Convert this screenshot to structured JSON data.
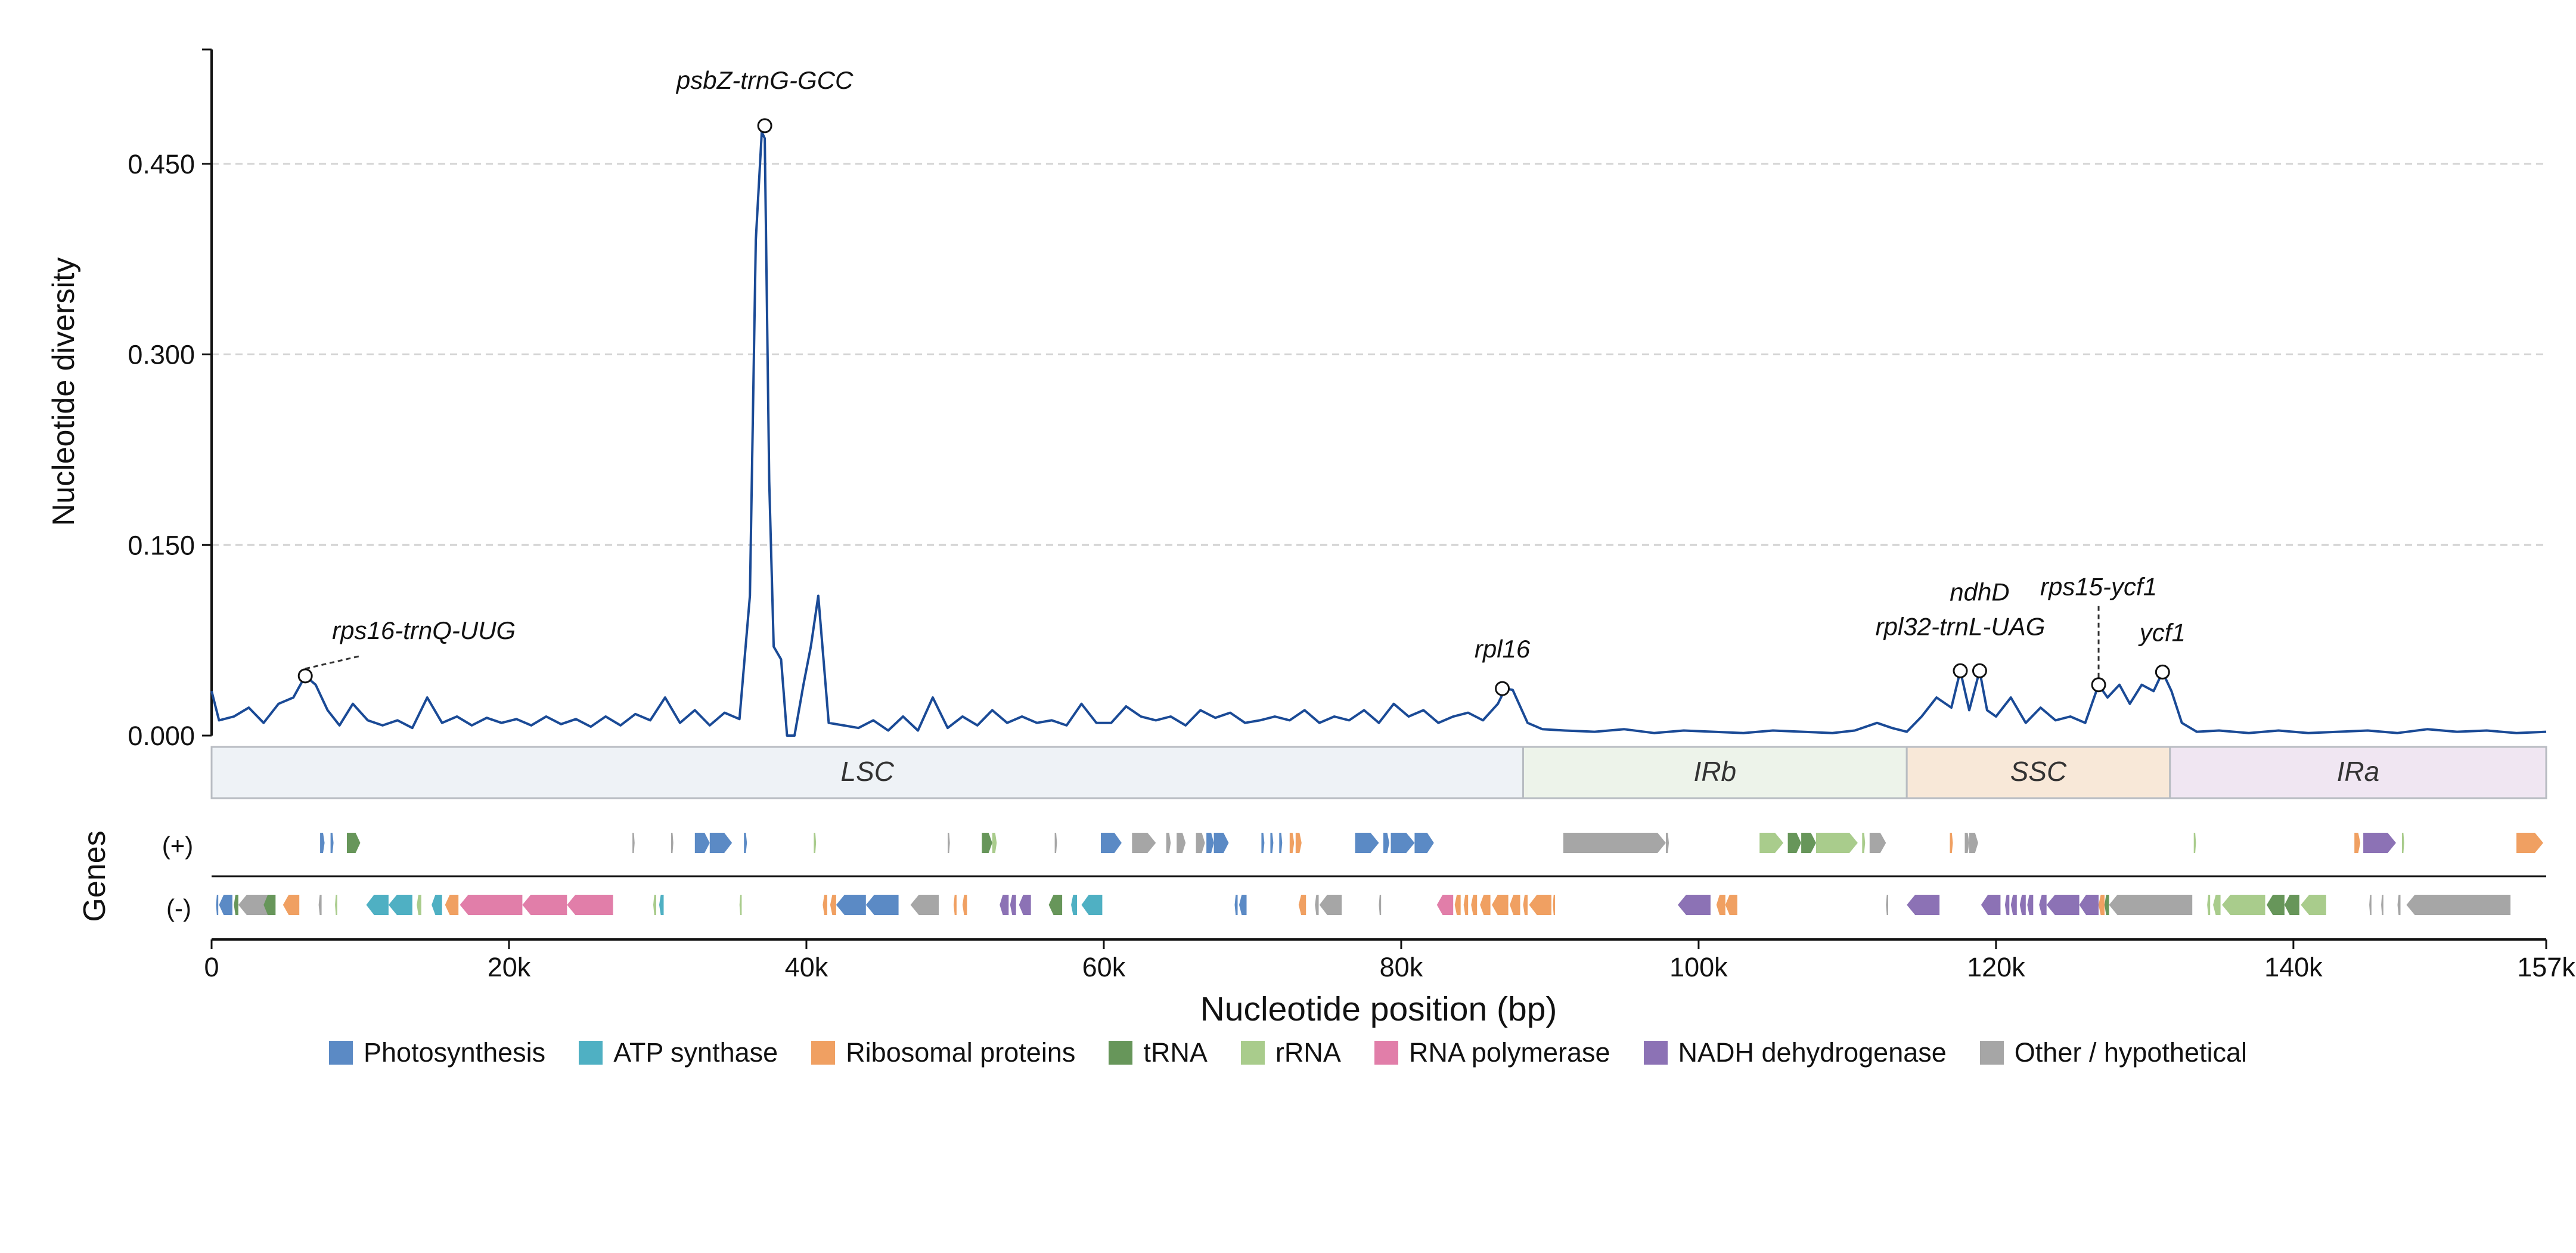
{
  "chart_data": {
    "type": "line",
    "xlabel": "Nucleotide position (bp)",
    "ylabel": "Nucleotide diversity",
    "genes_label": "Genes",
    "strand_plus_label": "(+)",
    "strand_minus_label": "(-)",
    "xlim": [
      0,
      157000
    ],
    "ylim": [
      0,
      0.54
    ],
    "x_ticks": [
      0,
      20000,
      40000,
      60000,
      80000,
      100000,
      120000,
      140000,
      157000
    ],
    "x_tick_labels": [
      "0",
      "20k",
      "40k",
      "60k",
      "80k",
      "100k",
      "120k",
      "140k",
      "157k"
    ],
    "y_ticks": [
      0,
      0.15,
      0.3,
      0.45
    ],
    "y_tick_labels": [
      "0.000",
      "0.150",
      "0.300",
      "0.450"
    ],
    "grid": "horizontal dashed",
    "line_color": "#1a4a96",
    "series": [
      {
        "x": [
          0,
          500,
          1500,
          2500,
          3500,
          4500,
          5500,
          6300,
          7000,
          7800,
          8600,
          9500,
          10500,
          11500,
          12500,
          13500,
          14500,
          15500,
          16500,
          17500,
          18500,
          19500,
          20500,
          21500,
          22500,
          23500,
          24500,
          25500,
          26500,
          27500,
          28500,
          29500,
          30500,
          31500,
          32500,
          33500,
          34500,
          35500,
          36200,
          36600,
          37000,
          37200,
          37500,
          37800,
          38300,
          38700,
          39200,
          39800,
          40300,
          40800,
          41500,
          42500,
          43500,
          44500,
          45500,
          46500,
          47500,
          48500,
          49500,
          50500,
          51500,
          52500,
          53500,
          54500,
          55500,
          56500,
          57500,
          58500,
          59500,
          60500,
          61500,
          62500,
          63500,
          64500,
          65500,
          66500,
          67500,
          68500,
          69500,
          70500,
          71500,
          72500,
          73500,
          74500,
          75500,
          76500,
          77500,
          78500,
          79500,
          80500,
          81500,
          82500,
          83500,
          84500,
          85500,
          86500,
          87000,
          87500,
          88500,
          89500,
          91000,
          93000,
          95000,
          97000,
          99000,
          101000,
          103000,
          105000,
          107000,
          109000,
          110500,
          112000,
          113000,
          114000,
          115000,
          116000,
          117000,
          117600,
          118200,
          118900,
          119400,
          120000,
          121000,
          122000,
          123000,
          124000,
          125000,
          126000,
          126900,
          127500,
          128300,
          129000,
          129800,
          130600,
          131200,
          131800,
          132500,
          133500,
          135000,
          137000,
          139000,
          141000,
          143000,
          145000,
          147000,
          149000,
          151000,
          153000,
          155000,
          157000
        ],
        "y": [
          0.035,
          0.012,
          0.015,
          0.022,
          0.01,
          0.025,
          0.03,
          0.047,
          0.04,
          0.02,
          0.008,
          0.025,
          0.012,
          0.008,
          0.012,
          0.006,
          0.03,
          0.01,
          0.015,
          0.008,
          0.014,
          0.01,
          0.013,
          0.008,
          0.015,
          0.009,
          0.013,
          0.007,
          0.015,
          0.008,
          0.017,
          0.012,
          0.03,
          0.01,
          0.02,
          0.008,
          0.018,
          0.013,
          0.11,
          0.39,
          0.475,
          0.47,
          0.2,
          0.07,
          0.06,
          0.0,
          0.0,
          0.04,
          0.07,
          0.11,
          0.01,
          0.008,
          0.006,
          0.012,
          0.004,
          0.015,
          0.004,
          0.03,
          0.006,
          0.015,
          0.008,
          0.02,
          0.01,
          0.015,
          0.01,
          0.012,
          0.008,
          0.025,
          0.01,
          0.01,
          0.023,
          0.015,
          0.012,
          0.015,
          0.008,
          0.02,
          0.014,
          0.018,
          0.01,
          0.012,
          0.015,
          0.012,
          0.02,
          0.01,
          0.015,
          0.012,
          0.02,
          0.01,
          0.025,
          0.015,
          0.02,
          0.01,
          0.015,
          0.018,
          0.012,
          0.025,
          0.037,
          0.036,
          0.01,
          0.005,
          0.004,
          0.003,
          0.005,
          0.002,
          0.004,
          0.003,
          0.002,
          0.004,
          0.003,
          0.002,
          0.004,
          0.01,
          0.006,
          0.003,
          0.015,
          0.03,
          0.022,
          0.051,
          0.02,
          0.051,
          0.02,
          0.015,
          0.03,
          0.01,
          0.022,
          0.012,
          0.015,
          0.01,
          0.04,
          0.03,
          0.04,
          0.025,
          0.04,
          0.035,
          0.05,
          0.035,
          0.01,
          0.003,
          0.004,
          0.002,
          0.004,
          0.002,
          0.003,
          0.004,
          0.002,
          0.005,
          0.003,
          0.004,
          0.002,
          0.003
        ]
      }
    ],
    "annotations": [
      {
        "label": "psbZ-trnG-GCC",
        "x": 37200,
        "y": 0.48
      },
      {
        "label": "rps16-trnQ-UUG",
        "x": 6300,
        "y": 0.047
      },
      {
        "label": "rpl16",
        "x": 86800,
        "y": 0.037
      },
      {
        "label": "rpl32-trnL-UAG",
        "x": 117600,
        "y": 0.051
      },
      {
        "label": "ndhD",
        "x": 118900,
        "y": 0.051
      },
      {
        "label": "rps15-ycf1",
        "x": 126900,
        "y": 0.04
      },
      {
        "label": "ycf1",
        "x": 131200,
        "y": 0.05
      }
    ],
    "regions": [
      {
        "label": "LSC",
        "start": 0,
        "end": 88200,
        "color": "#eef2f6"
      },
      {
        "label": "IRb",
        "start": 88200,
        "end": 114000,
        "color": "#edf3ea"
      },
      {
        "label": "SSC",
        "start": 114000,
        "end": 131700,
        "color": "#f8e8d8"
      },
      {
        "label": "IRa",
        "start": 131700,
        "end": 157000,
        "color": "#f0e6f2"
      }
    ],
    "gene_categories": [
      {
        "name": "Photosynthesis",
        "color": "#5b8ac5"
      },
      {
        "name": "ATP synthase",
        "color": "#4fb0c3"
      },
      {
        "name": "Ribosomal proteins",
        "color": "#f0a062"
      },
      {
        "name": "tRNA",
        "color": "#67965a"
      },
      {
        "name": "rRNA",
        "color": "#a9cc8c"
      },
      {
        "name": "RNA polymerase",
        "color": "#e17ea9"
      },
      {
        "name": "NADH dehydrogenase",
        "color": "#8c72b5"
      },
      {
        "name": "Other / hypothetical",
        "color": "#a6a6a6"
      }
    ],
    "genes_plus": [
      {
        "start": 7300,
        "end": 7600,
        "cat": 0
      },
      {
        "start": 8000,
        "end": 8200,
        "cat": 0
      },
      {
        "start": 9100,
        "end": 10000,
        "cat": 3
      },
      {
        "start": 28300,
        "end": 28450,
        "cat": 7
      },
      {
        "start": 30900,
        "end": 31050,
        "cat": 7
      },
      {
        "start": 32500,
        "end": 33500,
        "cat": 0
      },
      {
        "start": 33500,
        "end": 35000,
        "cat": 0
      },
      {
        "start": 35800,
        "end": 36000,
        "cat": 0
      },
      {
        "start": 40500,
        "end": 40650,
        "cat": 4
      },
      {
        "start": 49500,
        "end": 49650,
        "cat": 7
      },
      {
        "start": 51800,
        "end": 52500,
        "cat": 3
      },
      {
        "start": 52500,
        "end": 52800,
        "cat": 4
      },
      {
        "start": 56700,
        "end": 56850,
        "cat": 7
      },
      {
        "start": 59800,
        "end": 61200,
        "cat": 0
      },
      {
        "start": 61900,
        "end": 63500,
        "cat": 7
      },
      {
        "start": 64200,
        "end": 64500,
        "cat": 7
      },
      {
        "start": 64900,
        "end": 65500,
        "cat": 7
      },
      {
        "start": 66200,
        "end": 66800,
        "cat": 7
      },
      {
        "start": 66900,
        "end": 67400,
        "cat": 0
      },
      {
        "start": 67400,
        "end": 68400,
        "cat": 0
      },
      {
        "start": 70600,
        "end": 70800,
        "cat": 0
      },
      {
        "start": 71200,
        "end": 71400,
        "cat": 0
      },
      {
        "start": 71800,
        "end": 72000,
        "cat": 0
      },
      {
        "start": 72500,
        "end": 72800,
        "cat": 2
      },
      {
        "start": 72900,
        "end": 73300,
        "cat": 2
      },
      {
        "start": 76900,
        "end": 78500,
        "cat": 0
      },
      {
        "start": 78800,
        "end": 79200,
        "cat": 0
      },
      {
        "start": 79300,
        "end": 80900,
        "cat": 0
      },
      {
        "start": 80900,
        "end": 82200,
        "cat": 0
      },
      {
        "start": 90900,
        "end": 97800,
        "cat": 7
      },
      {
        "start": 97800,
        "end": 98000,
        "cat": 7
      },
      {
        "start": 104100,
        "end": 105700,
        "cat": 4
      },
      {
        "start": 106000,
        "end": 106900,
        "cat": 3
      },
      {
        "start": 106900,
        "end": 107900,
        "cat": 3
      },
      {
        "start": 107900,
        "end": 110700,
        "cat": 4
      },
      {
        "start": 111000,
        "end": 111200,
        "cat": 4
      },
      {
        "start": 111500,
        "end": 112600,
        "cat": 7
      },
      {
        "start": 116900,
        "end": 117100,
        "cat": 2
      },
      {
        "start": 117900,
        "end": 118200,
        "cat": 7
      },
      {
        "start": 118200,
        "end": 118800,
        "cat": 7
      },
      {
        "start": 133300,
        "end": 133450,
        "cat": 4
      },
      {
        "start": 144100,
        "end": 144500,
        "cat": 2
      },
      {
        "start": 144700,
        "end": 146900,
        "cat": 6
      },
      {
        "start": 147300,
        "end": 147450,
        "cat": 4
      },
      {
        "start": 155000,
        "end": 156800,
        "cat": 2
      }
    ],
    "genes_minus": [
      {
        "start": 300,
        "end": 450,
        "cat": 0
      },
      {
        "start": 500,
        "end": 1400,
        "cat": 0
      },
      {
        "start": 1500,
        "end": 1800,
        "cat": 3
      },
      {
        "start": 1800,
        "end": 4000,
        "cat": 7
      },
      {
        "start": 3500,
        "end": 4300,
        "cat": 3
      },
      {
        "start": 4800,
        "end": 5900,
        "cat": 2
      },
      {
        "start": 7200,
        "end": 7400,
        "cat": 7
      },
      {
        "start": 8300,
        "end": 8450,
        "cat": 4
      },
      {
        "start": 10400,
        "end": 11900,
        "cat": 1
      },
      {
        "start": 11900,
        "end": 13500,
        "cat": 1
      },
      {
        "start": 13800,
        "end": 14100,
        "cat": 4
      },
      {
        "start": 14800,
        "end": 15500,
        "cat": 1
      },
      {
        "start": 15700,
        "end": 16600,
        "cat": 2
      },
      {
        "start": 16700,
        "end": 20900,
        "cat": 5
      },
      {
        "start": 20900,
        "end": 23900,
        "cat": 5
      },
      {
        "start": 23900,
        "end": 27000,
        "cat": 5
      },
      {
        "start": 29700,
        "end": 29900,
        "cat": 4
      },
      {
        "start": 30100,
        "end": 30400,
        "cat": 1
      },
      {
        "start": 35500,
        "end": 35650,
        "cat": 4
      },
      {
        "start": 41100,
        "end": 41400,
        "cat": 2
      },
      {
        "start": 41600,
        "end": 42000,
        "cat": 2
      },
      {
        "start": 42000,
        "end": 44000,
        "cat": 0
      },
      {
        "start": 44000,
        "end": 46200,
        "cat": 0
      },
      {
        "start": 47000,
        "end": 48900,
        "cat": 7
      },
      {
        "start": 49900,
        "end": 50100,
        "cat": 2
      },
      {
        "start": 50500,
        "end": 50800,
        "cat": 2
      },
      {
        "start": 53000,
        "end": 53600,
        "cat": 6
      },
      {
        "start": 53700,
        "end": 54100,
        "cat": 6
      },
      {
        "start": 54300,
        "end": 55100,
        "cat": 6
      },
      {
        "start": 56300,
        "end": 57200,
        "cat": 3
      },
      {
        "start": 57800,
        "end": 58200,
        "cat": 1
      },
      {
        "start": 58500,
        "end": 59900,
        "cat": 1
      },
      {
        "start": 68800,
        "end": 69000,
        "cat": 0
      },
      {
        "start": 69100,
        "end": 69600,
        "cat": 0
      },
      {
        "start": 73100,
        "end": 73600,
        "cat": 2
      },
      {
        "start": 74200,
        "end": 74450,
        "cat": 7
      },
      {
        "start": 74500,
        "end": 76000,
        "cat": 7
      },
      {
        "start": 78500,
        "end": 78650,
        "cat": 7
      },
      {
        "start": 82400,
        "end": 83500,
        "cat": 5
      },
      {
        "start": 83600,
        "end": 84000,
        "cat": 2
      },
      {
        "start": 84200,
        "end": 84500,
        "cat": 2
      },
      {
        "start": 84700,
        "end": 85100,
        "cat": 2
      },
      {
        "start": 85300,
        "end": 86000,
        "cat": 2
      },
      {
        "start": 86100,
        "end": 87200,
        "cat": 2
      },
      {
        "start": 87300,
        "end": 88000,
        "cat": 2
      },
      {
        "start": 88200,
        "end": 88500,
        "cat": 2
      },
      {
        "start": 88600,
        "end": 90100,
        "cat": 2
      },
      {
        "start": 90200,
        "end": 90350,
        "cat": 2
      },
      {
        "start": 98600,
        "end": 100800,
        "cat": 6
      },
      {
        "start": 101200,
        "end": 101800,
        "cat": 2
      },
      {
        "start": 101800,
        "end": 102600,
        "cat": 2
      },
      {
        "start": 112600,
        "end": 112750,
        "cat": 7
      },
      {
        "start": 114000,
        "end": 116200,
        "cat": 6
      },
      {
        "start": 119000,
        "end": 120300,
        "cat": 6
      },
      {
        "start": 120600,
        "end": 120900,
        "cat": 6
      },
      {
        "start": 121000,
        "end": 121400,
        "cat": 6
      },
      {
        "start": 121600,
        "end": 122000,
        "cat": 6
      },
      {
        "start": 122100,
        "end": 122500,
        "cat": 6
      },
      {
        "start": 122900,
        "end": 123400,
        "cat": 6
      },
      {
        "start": 123400,
        "end": 125600,
        "cat": 6
      },
      {
        "start": 125600,
        "end": 126900,
        "cat": 6
      },
      {
        "start": 126900,
        "end": 127300,
        "cat": 2
      },
      {
        "start": 127300,
        "end": 127600,
        "cat": 3
      },
      {
        "start": 127600,
        "end": 133200,
        "cat": 7
      },
      {
        "start": 134200,
        "end": 134400,
        "cat": 4
      },
      {
        "start": 134600,
        "end": 135100,
        "cat": 4
      },
      {
        "start": 135200,
        "end": 138100,
        "cat": 4
      },
      {
        "start": 138200,
        "end": 139400,
        "cat": 3
      },
      {
        "start": 139400,
        "end": 140400,
        "cat": 3
      },
      {
        "start": 140500,
        "end": 142200,
        "cat": 4
      },
      {
        "start": 145100,
        "end": 145250,
        "cat": 7
      },
      {
        "start": 145900,
        "end": 146050,
        "cat": 7
      },
      {
        "start": 147000,
        "end": 147200,
        "cat": 7
      },
      {
        "start": 147600,
        "end": 154600,
        "cat": 7
      }
    ]
  }
}
